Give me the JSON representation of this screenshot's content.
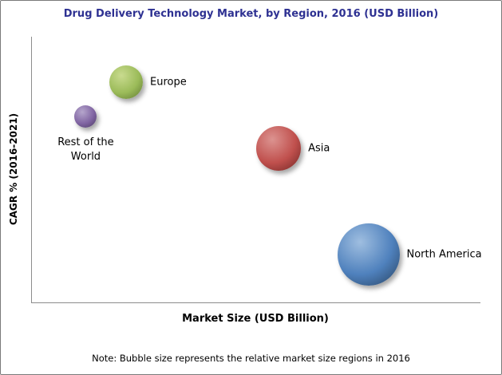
{
  "chart_data": {
    "type": "bubble",
    "title": "Drug Delivery Technology Market, by Region, 2016 (USD Billion)",
    "title_color": "#2E3192",
    "xlabel": "Market Size (USD Billion)",
    "ylabel": "CAGR % (2016-2021)",
    "note": "Note: Bubble size represents the relative market size regions in 2016",
    "x_axis_ticks": [],
    "y_axis_ticks": [],
    "axis_note": "Axes are unlabeled in the source image; bubble positions are relative (percent of plot area), bubble size is relative 2016 market size",
    "series": [
      {
        "name": "Europe",
        "x_pct": 21,
        "y_pct": 83,
        "radius_px": 21,
        "color": "#9BBB59",
        "color_light": "#C9DB8F",
        "color_dark": "#5E7731",
        "label_position": "right"
      },
      {
        "name": "Rest of the World",
        "x_pct": 12,
        "y_pct": 70,
        "radius_px": 14,
        "color": "#8064A2",
        "color_light": "#B5A6CC",
        "color_dark": "#4A3A61",
        "label_position": "below"
      },
      {
        "name": "Asia",
        "x_pct": 55,
        "y_pct": 58,
        "radius_px": 28,
        "color": "#C0504D",
        "color_light": "#DC9390",
        "color_dark": "#6E2523",
        "label_position": "right"
      },
      {
        "name": "North America",
        "x_pct": 75,
        "y_pct": 18,
        "radius_px": 39,
        "color": "#4F81BD",
        "color_light": "#9FBEE0",
        "color_dark": "#27415F",
        "label_position": "right"
      }
    ]
  }
}
